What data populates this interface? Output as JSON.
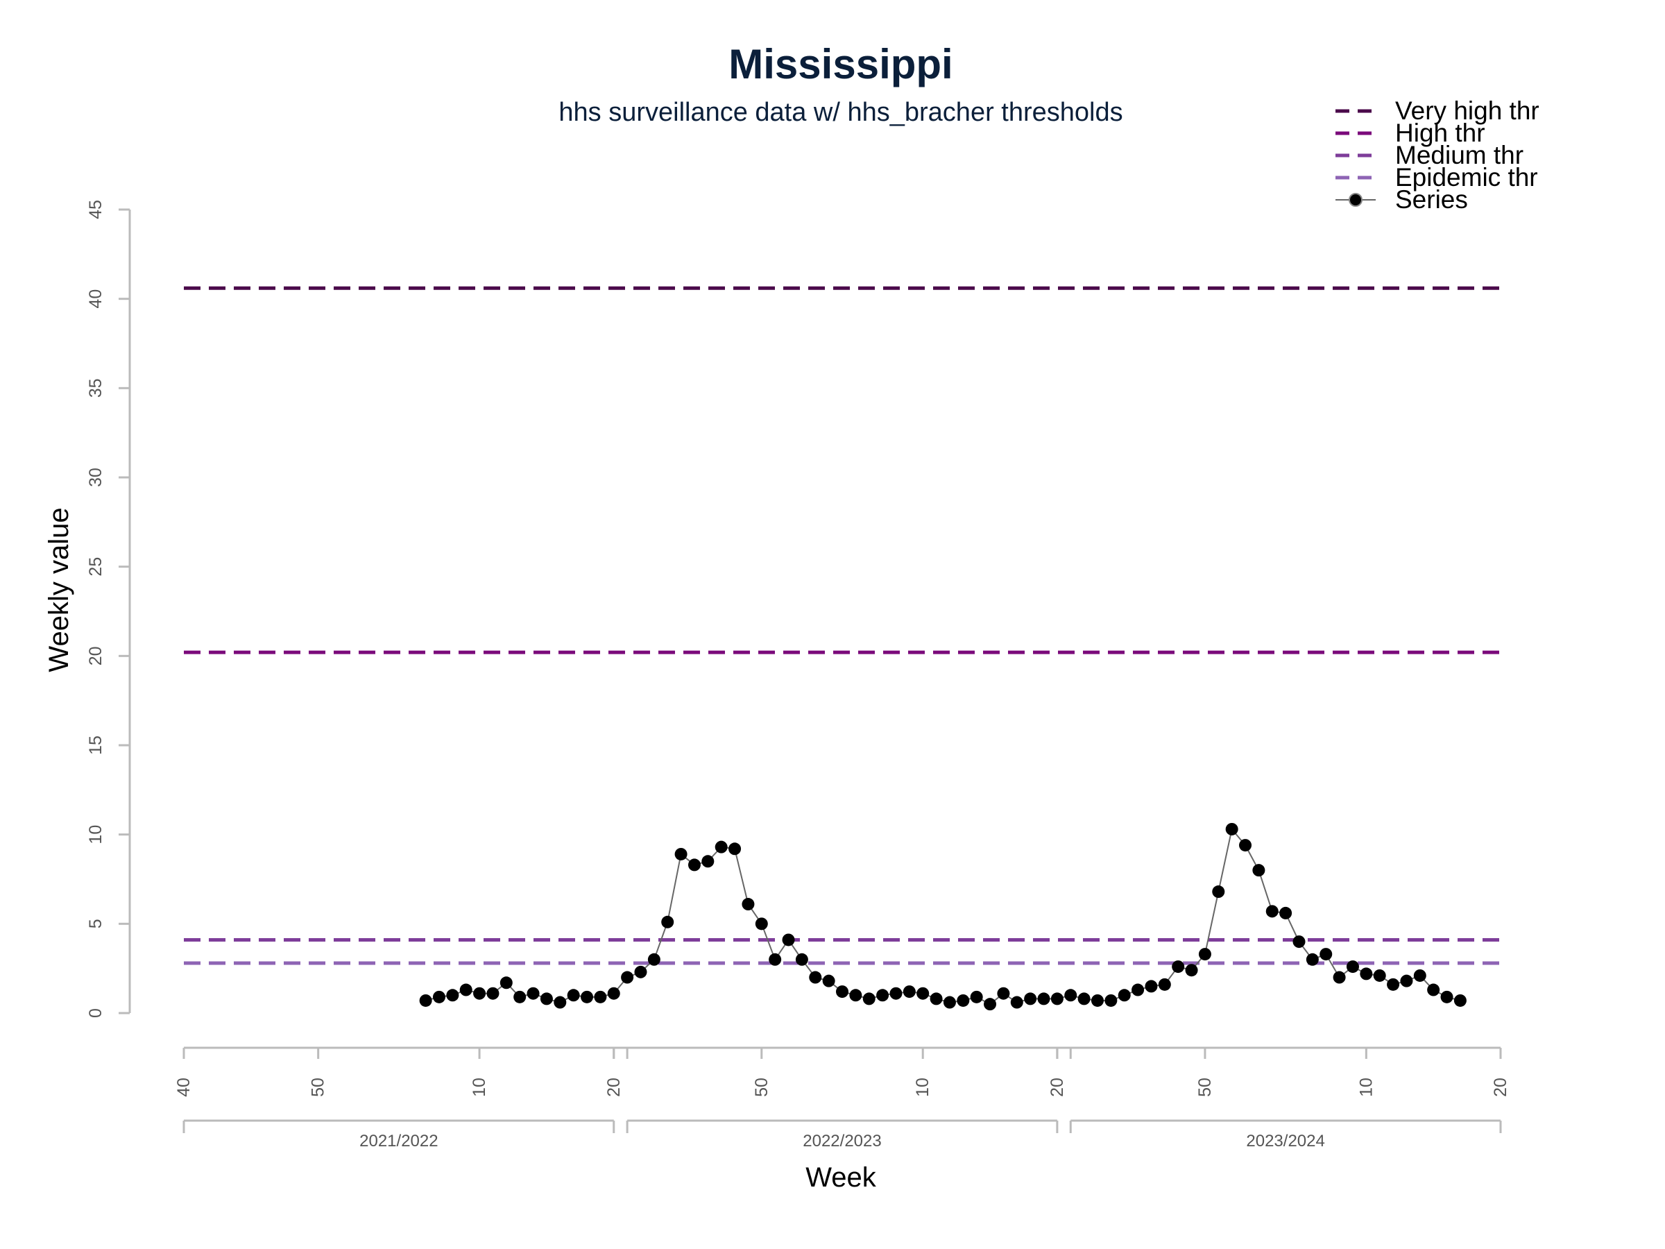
{
  "chart_data": {
    "type": "line",
    "title": "Mississippi",
    "subtitle": "hhs surveillance data w/ hhs_bracher thresholds",
    "xlabel": "Week",
    "ylabel": "Weekly value",
    "ylim": [
      0,
      45
    ],
    "y_ticks": [
      0,
      5,
      10,
      15,
      20,
      25,
      30,
      35,
      40,
      45
    ],
    "grid": false,
    "legend_position": "top-right",
    "colors": {
      "title": "#0b1f3a",
      "very_high": "#4b0a4b",
      "high": "#7b0a7b",
      "medium": "#7e3d9a",
      "epidemic": "#8e64b4",
      "series": "#000000",
      "series_line": "#666666",
      "axis": "#bbbbbb"
    },
    "thresholds": [
      {
        "name": "Very high thr",
        "value": 40.6,
        "color": "#4b0a4b"
      },
      {
        "name": "High thr",
        "value": 20.2,
        "color": "#7b0a7b"
      },
      {
        "name": "Medium thr",
        "value": 4.1,
        "color": "#7e3d9a"
      },
      {
        "name": "Epidemic thr",
        "value": 2.8,
        "color": "#8e64b4"
      }
    ],
    "legend": [
      {
        "label": "Very high thr",
        "kind": "dash",
        "color": "#4b0a4b"
      },
      {
        "label": "High thr",
        "kind": "dash",
        "color": "#7b0a7b"
      },
      {
        "label": "Medium thr",
        "kind": "dash",
        "color": "#7e3d9a"
      },
      {
        "label": "Epidemic thr",
        "kind": "dash",
        "color": "#8e64b4"
      },
      {
        "label": "Series",
        "kind": "point",
        "color": "#000000"
      }
    ],
    "seasons": [
      {
        "label": "2021/2022",
        "start": 0,
        "end": 32,
        "ticks": [
          {
            "pos": 0,
            "label": "40"
          },
          {
            "pos": 10,
            "label": "50"
          },
          {
            "pos": 22,
            "label": "10"
          },
          {
            "pos": 32,
            "label": "20"
          }
        ]
      },
      {
        "label": "2022/2023",
        "start": 33,
        "end": 65,
        "ticks": [
          {
            "pos": 43,
            "label": "50"
          },
          {
            "pos": 55,
            "label": "10"
          },
          {
            "pos": 65,
            "label": "20"
          }
        ]
      },
      {
        "label": "2023/2024",
        "start": 66,
        "end": 98,
        "ticks": [
          {
            "pos": 76,
            "label": "50"
          },
          {
            "pos": 88,
            "label": "10"
          },
          {
            "pos": 98,
            "label": "20"
          }
        ]
      }
    ],
    "x_range": [
      0,
      98
    ],
    "x": [
      18,
      19,
      20,
      21,
      22,
      23,
      24,
      25,
      26,
      27,
      28,
      29,
      30,
      31,
      32,
      33,
      34,
      35,
      36,
      37,
      38,
      39,
      40,
      41,
      42,
      43,
      44,
      45,
      46,
      47,
      48,
      49,
      50,
      51,
      52,
      53,
      54,
      55,
      56,
      57,
      58,
      59,
      60,
      61,
      62,
      63,
      64,
      65,
      66,
      67,
      68,
      69,
      70,
      71,
      72,
      73,
      74,
      75,
      76,
      77,
      78,
      79,
      80,
      81,
      82,
      83,
      84,
      85,
      86,
      87,
      88,
      89,
      90,
      91,
      92,
      93,
      94,
      95
    ],
    "values": [
      0.7,
      0.9,
      1.0,
      1.3,
      1.1,
      1.1,
      1.7,
      0.9,
      1.1,
      0.8,
      0.6,
      1.0,
      0.9,
      0.9,
      1.1,
      2.0,
      2.3,
      3.0,
      5.1,
      8.9,
      8.3,
      8.5,
      9.3,
      9.2,
      6.1,
      5.0,
      3.0,
      4.1,
      3.0,
      2.0,
      1.8,
      1.2,
      1.0,
      0.8,
      1.0,
      1.1,
      1.2,
      1.1,
      0.8,
      0.6,
      0.7,
      0.9,
      0.5,
      1.1,
      0.6,
      0.8,
      0.8,
      0.8,
      1.0,
      0.8,
      0.7,
      0.7,
      1.0,
      1.3,
      1.5,
      1.6,
      2.6,
      2.4,
      3.3,
      6.8,
      10.3,
      9.4,
      8.0,
      5.7,
      5.6,
      4.0,
      3.0,
      3.3,
      2.0,
      2.6,
      2.2,
      2.1,
      1.6,
      1.8,
      2.1,
      1.3,
      0.9,
      0.7
    ]
  }
}
